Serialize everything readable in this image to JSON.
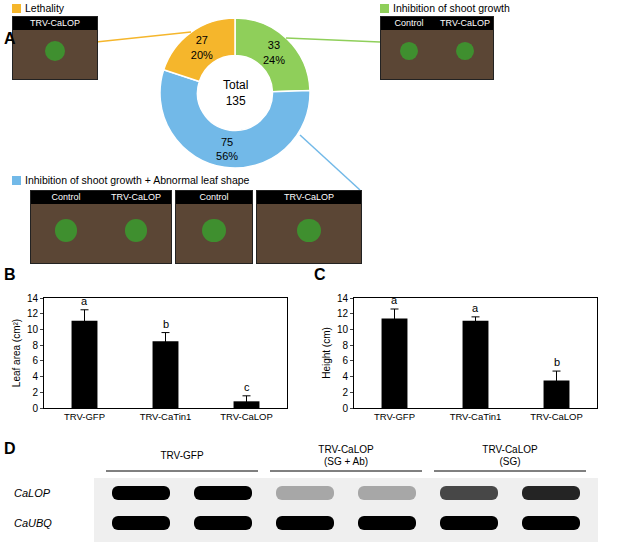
{
  "chart_data": [
    {
      "panel": "A",
      "type": "pie",
      "categories": [
        "Inhibition of shoot growth",
        "Inhibition of shoot growth + Abnormal leaf shape",
        "Lethality"
      ],
      "values": [
        33,
        75,
        27
      ],
      "value_labels": [
        "33\n24%",
        "75\n56%",
        "27\n20%"
      ],
      "colors": [
        "#8fcf5a",
        "#72b9e8",
        "#f5b62c"
      ],
      "center_text": "Total\n135",
      "data_labels": true
    },
    {
      "panel": "B",
      "type": "bar",
      "categories": [
        "TRV-GFP",
        "TRV-CaTin1",
        "TRV-CaLOP"
      ],
      "values": [
        11.1,
        8.5,
        0.85
      ],
      "errors": [
        1.4,
        1.1,
        0.7
      ],
      "annotations": [
        "a",
        "b",
        "c"
      ],
      "ylabel": "Leaf area (cm²)",
      "ylim": [
        0,
        14
      ],
      "yticks": [
        0,
        2,
        4,
        6,
        8,
        10,
        12,
        14
      ],
      "color": "#000000",
      "grid": false
    },
    {
      "panel": "C",
      "type": "bar",
      "categories": [
        "TRV-GFP",
        "TRV-CaTin1",
        "TRV-CaLOP"
      ],
      "values": [
        11.4,
        11.1,
        3.5
      ],
      "errors": [
        1.2,
        0.5,
        1.2
      ],
      "annotations": [
        "a",
        "a",
        "b"
      ],
      "ylabel": "Height (cm)",
      "ylim": [
        0,
        14
      ],
      "yticks": [
        0,
        2,
        4,
        6,
        8,
        10,
        12,
        14
      ],
      "color": "#000000",
      "grid": false
    }
  ],
  "photos": [
    {
      "group": "Lethality",
      "frames": [
        [
          "TRV-CaLOP"
        ]
      ]
    },
    {
      "group": "Inhibition of shoot growth",
      "frames": [
        [
          "Control",
          "TRV-CaLOP"
        ]
      ]
    },
    {
      "group": "Inhibition of shoot growth + Abnormal leaf shape",
      "frames": [
        [
          "Control",
          "TRV-CaLOP"
        ],
        [
          "Control"
        ],
        [
          "TRV-CaLOP"
        ]
      ]
    }
  ],
  "gel": {
    "panel": "D",
    "groups": [
      {
        "label": "TRV-GFP",
        "lanes": 2
      },
      {
        "label": "TRV-CaLOP (SG + Ab)",
        "lanes": 2
      },
      {
        "label": "TRV-CaLOP (SG)",
        "lanes": 2
      }
    ],
    "rows": [
      {
        "label": "CaLOP",
        "band_intensity": [
          1,
          1,
          0.3,
          0.3,
          0.7,
          0.85
        ]
      },
      {
        "label": "CaUBQ",
        "band_intensity": [
          1,
          1,
          1,
          1,
          1,
          1
        ]
      }
    ]
  }
}
